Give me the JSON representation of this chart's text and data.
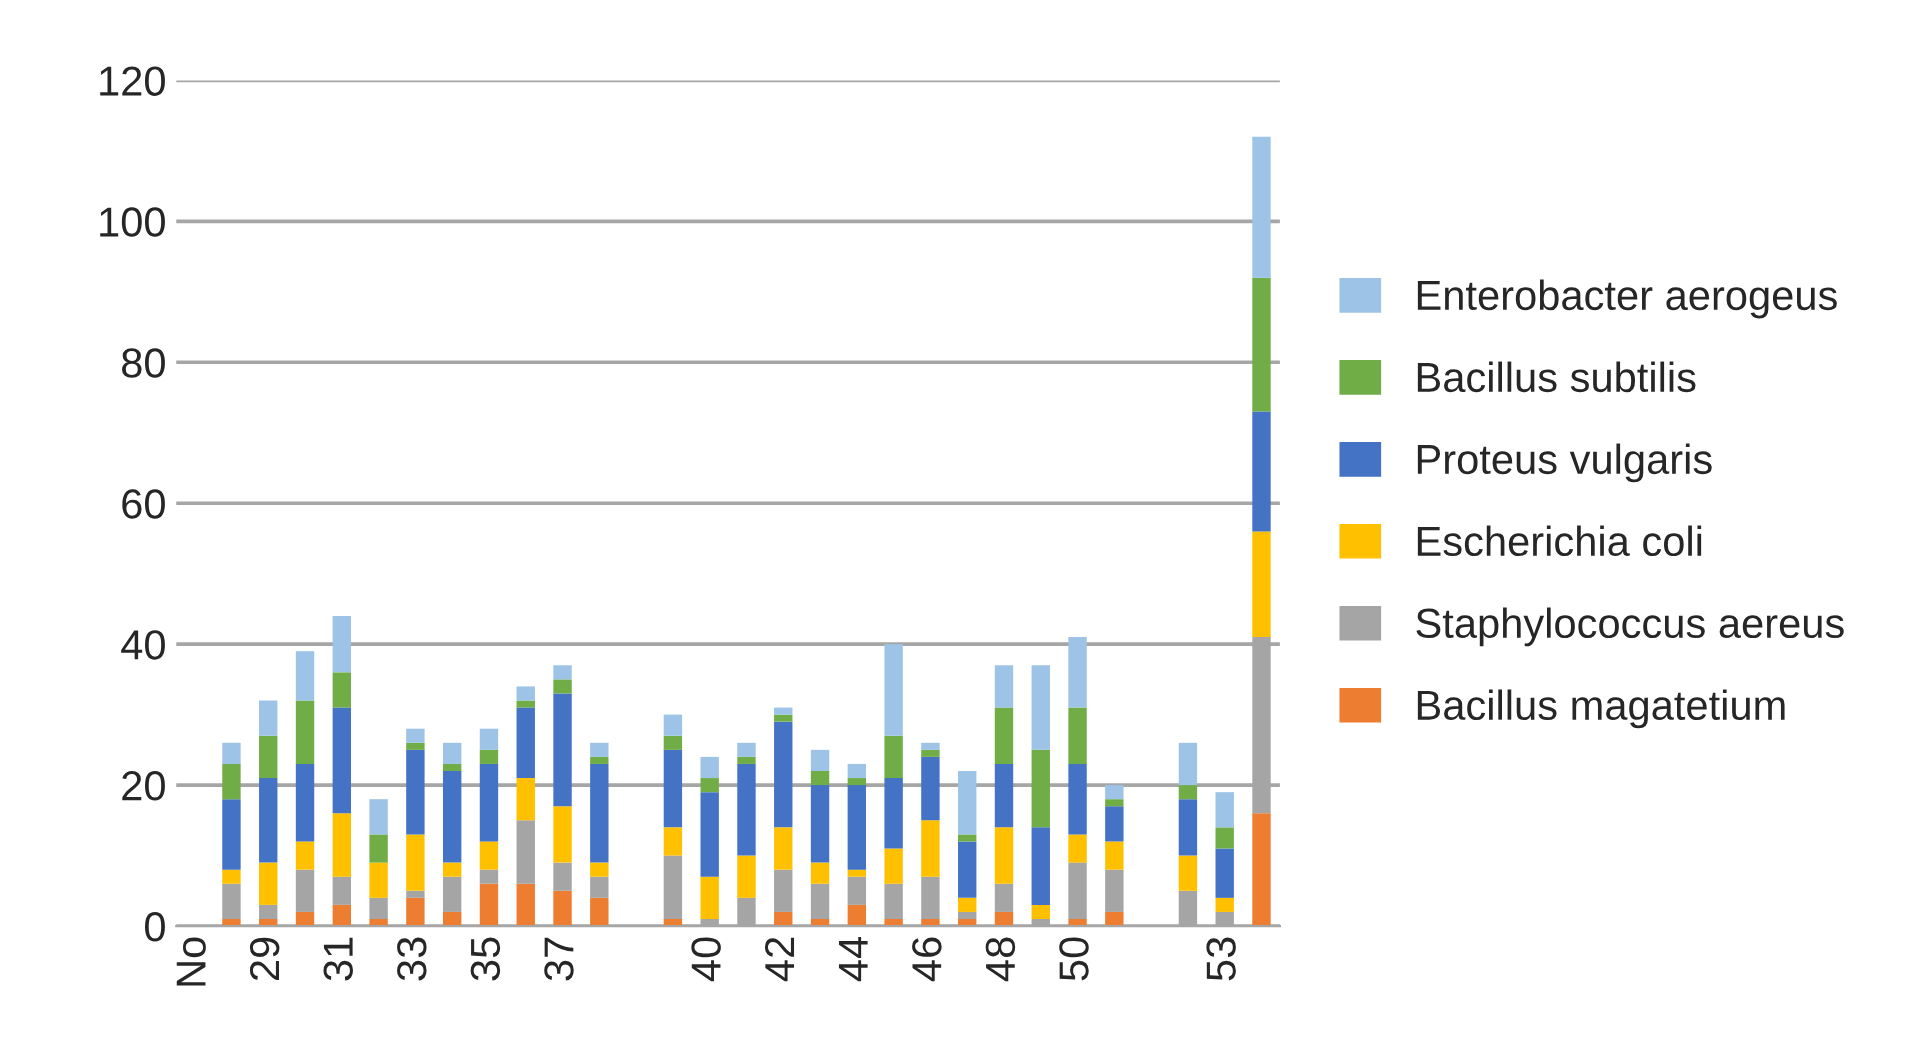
{
  "chart_data": {
    "type": "bar",
    "stacked": true,
    "categories": [
      "No",
      null,
      "29",
      null,
      "31",
      null,
      "33",
      null,
      "35",
      null,
      "37",
      null,
      null,
      null,
      "40",
      null,
      "42",
      null,
      "44",
      null,
      "46",
      null,
      "48",
      null,
      "50",
      null,
      null,
      null,
      "53",
      null
    ],
    "series": [
      {
        "name": "Bacillus magatetium",
        "color": "#ed7d31",
        "values": [
          null,
          1,
          1,
          2,
          3,
          1,
          4,
          2,
          6,
          6,
          5,
          4,
          null,
          1,
          0,
          0,
          2,
          1,
          3,
          1,
          1,
          1,
          2,
          0,
          1,
          2,
          null,
          0,
          0,
          16
        ]
      },
      {
        "name": "Staphylococcus aereus",
        "color": "#a5a5a5",
        "values": [
          null,
          5,
          2,
          6,
          4,
          3,
          1,
          5,
          2,
          9,
          4,
          3,
          null,
          9,
          1,
          4,
          6,
          5,
          4,
          5,
          6,
          1,
          4,
          1,
          8,
          6,
          null,
          5,
          2,
          25
        ]
      },
      {
        "name": "Escherichia coli",
        "color": "#ffc000",
        "values": [
          null,
          2,
          6,
          4,
          9,
          5,
          8,
          2,
          4,
          6,
          8,
          2,
          null,
          4,
          6,
          6,
          6,
          3,
          1,
          5,
          8,
          2,
          8,
          2,
          4,
          4,
          null,
          5,
          2,
          15
        ]
      },
      {
        "name": "Proteus vulgaris",
        "color": "#4472c4",
        "values": [
          null,
          10,
          12,
          11,
          15,
          0,
          12,
          13,
          11,
          10,
          16,
          14,
          null,
          11,
          12,
          13,
          15,
          11,
          12,
          10,
          9,
          8,
          9,
          11,
          10,
          5,
          null,
          8,
          7,
          17
        ]
      },
      {
        "name": "Bacillus subtilis",
        "color": "#70ad47",
        "values": [
          null,
          5,
          6,
          9,
          5,
          4,
          1,
          1,
          2,
          1,
          2,
          1,
          null,
          2,
          2,
          1,
          1,
          2,
          1,
          6,
          1,
          1,
          8,
          11,
          8,
          1,
          null,
          2,
          3,
          19
        ]
      },
      {
        "name": "Enterobacter aerogeus",
        "color": "#9dc3e6",
        "values": [
          null,
          3,
          5,
          7,
          8,
          5,
          2,
          3,
          3,
          2,
          2,
          2,
          null,
          3,
          3,
          2,
          1,
          3,
          2,
          13,
          1,
          9,
          6,
          12,
          10,
          2,
          null,
          6,
          5,
          20
        ]
      }
    ],
    "ylim": [
      0,
      120
    ],
    "yticks": [
      0,
      20,
      40,
      60,
      80,
      100,
      120
    ],
    "grid": "y",
    "legend": "right"
  }
}
